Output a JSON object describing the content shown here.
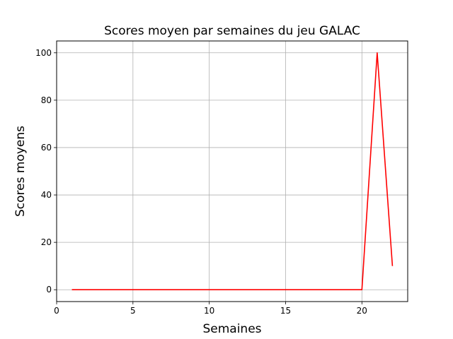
{
  "chart_data": {
    "type": "line",
    "title": "Scores moyen par semaines du jeu GALAC",
    "xlabel": "Semaines",
    "ylabel": "Scores moyens",
    "xlim": [
      0,
      23
    ],
    "ylim": [
      -5,
      105
    ],
    "xticks": [
      0,
      5,
      10,
      15,
      20
    ],
    "yticks": [
      0,
      20,
      40,
      60,
      80,
      100
    ],
    "grid": true,
    "legend": false,
    "series": [
      {
        "color": "#ff0000",
        "x": [
          1,
          2,
          3,
          4,
          5,
          6,
          7,
          8,
          9,
          10,
          11,
          12,
          13,
          14,
          15,
          16,
          17,
          18,
          19,
          20,
          21,
          22
        ],
        "y": [
          0,
          0,
          0,
          0,
          0,
          0,
          0,
          0,
          0,
          0,
          0,
          0,
          0,
          0,
          0,
          0,
          0,
          0,
          0,
          0,
          100,
          10
        ]
      }
    ]
  }
}
